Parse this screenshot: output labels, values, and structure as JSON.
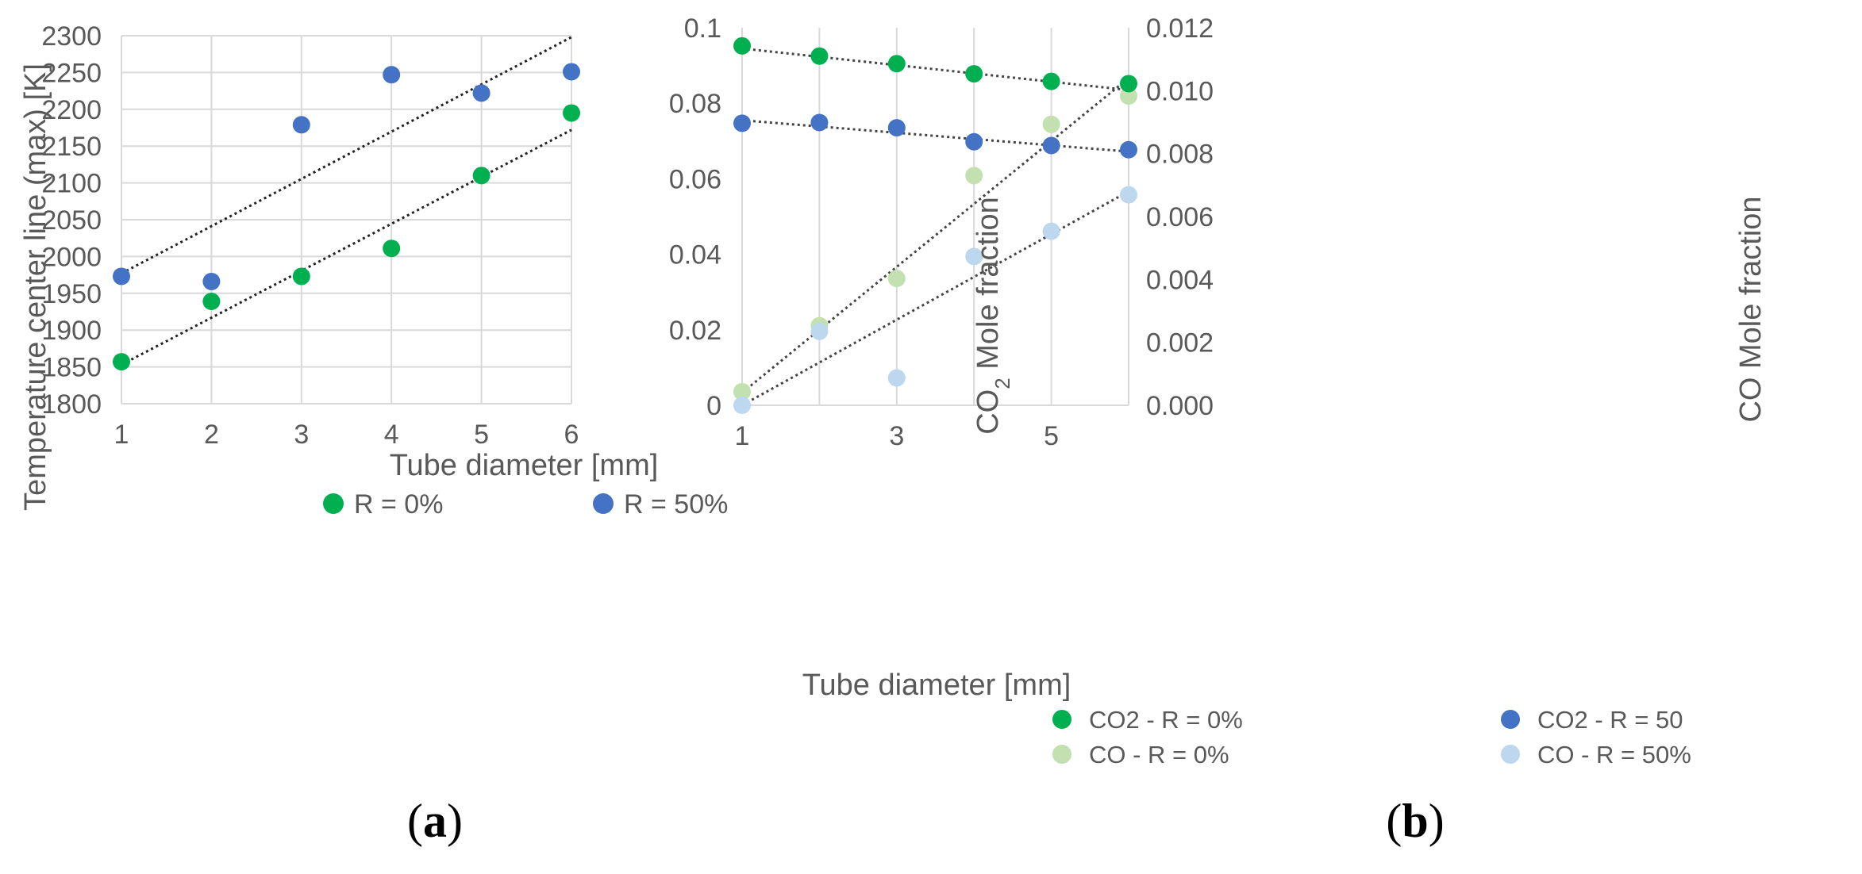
{
  "chart_data": [
    {
      "type": "scatter",
      "panel": "a",
      "xlabel": "Tube diameter [mm]",
      "ylabel": "Temperature center line (max) [K]",
      "xlim": [
        1,
        6
      ],
      "ylim": [
        1800,
        2300
      ],
      "xticks": [
        1,
        2,
        3,
        4,
        5,
        6
      ],
      "yticks": [
        1800,
        1850,
        1900,
        1950,
        2000,
        2050,
        2100,
        2150,
        2200,
        2250,
        2300
      ],
      "grid": true,
      "legend_position": "bottom",
      "series": [
        {
          "name": "R = 0%",
          "color": "#00b050",
          "x": [
            1,
            2,
            3,
            4,
            5,
            6
          ],
          "y": [
            1857,
            1939,
            1973,
            2011,
            2110,
            2195
          ],
          "trendline": [
            [
              1,
              1853
            ],
            [
              6,
              2172
            ]
          ]
        },
        {
          "name": "R = 50%",
          "color": "#4472c4",
          "x": [
            1,
            2,
            3,
            4,
            5,
            6
          ],
          "y": [
            1973,
            1966,
            2179,
            2247,
            2222,
            2251
          ],
          "trendline": [
            [
              1,
              1977
            ],
            [
              6,
              2298
            ]
          ]
        }
      ]
    },
    {
      "type": "scatter",
      "panel": "b",
      "xlabel": "Tube diameter [mm]",
      "ylabel_left_prefix": "CO",
      "ylabel_left_sub": "2",
      "ylabel_left_suffix": " Mole fraction",
      "ylabel_right": "CO Mole fraction",
      "xlim": [
        1,
        6
      ],
      "ylim_left": [
        0,
        0.1
      ],
      "ylim_right": [
        0,
        0.012
      ],
      "xticks": [
        1,
        3,
        5
      ],
      "grid": true,
      "legend_position": "bottom",
      "series": [
        {
          "name": "CO2 - R = 0%",
          "axis": "left",
          "color": "#00b050",
          "x": [
            1,
            2,
            3,
            4,
            5,
            6
          ],
          "y": [
            0.0952,
            0.0925,
            0.0905,
            0.0878,
            0.0858,
            0.0852
          ],
          "trendline": [
            [
              1,
              0.0945
            ],
            [
              6,
              0.0835
            ]
          ]
        },
        {
          "name": "CO2 - R = 50",
          "axis": "left",
          "color": "#4472c4",
          "x": [
            1,
            2,
            3,
            4,
            5,
            6
          ],
          "y": [
            0.0747,
            0.0749,
            0.0735,
            0.0698,
            0.0688,
            0.0677
          ],
          "trendline": [
            [
              1,
              0.0755
            ],
            [
              6,
              0.0672
            ]
          ]
        },
        {
          "name": "CO - R = 0%",
          "axis": "right",
          "color": "#c3e0b0",
          "x": [
            1,
            2,
            3,
            4,
            5,
            6
          ],
          "y": [
            0.00043,
            0.00253,
            0.00403,
            0.0073,
            0.00893,
            0.00983
          ],
          "trendline": [
            [
              1,
              0.0004
            ],
            [
              6,
              0.0104
            ]
          ]
        },
        {
          "name": "CO - R = 50%",
          "axis": "right",
          "color": "#bdd7ee",
          "x": [
            1,
            2,
            3,
            4,
            5,
            6
          ],
          "y": [
            0.0,
            0.00235,
            0.00087,
            0.00473,
            0.00553,
            0.00669
          ],
          "trendline": [
            [
              1,
              0.0
            ],
            [
              6,
              0.0068
            ]
          ]
        }
      ]
    }
  ],
  "panel_labels": {
    "a": "a",
    "b": "b"
  },
  "axes_text": {
    "a_yticks": [
      "1800",
      "1850",
      "1900",
      "1950",
      "2000",
      "2050",
      "2100",
      "2150",
      "2200",
      "2250",
      "2300"
    ],
    "a_xticks": [
      "1",
      "2",
      "3",
      "4",
      "5",
      "6"
    ],
    "b_left_ticks": [
      "0",
      "0.02",
      "0.04",
      "0.06",
      "0.08",
      "0.1"
    ],
    "b_right_ticks": [
      "0.000",
      "0.002",
      "0.004",
      "0.006",
      "0.008",
      "0.010",
      "0.012"
    ],
    "b_xticks": [
      "1",
      "3",
      "5"
    ]
  }
}
